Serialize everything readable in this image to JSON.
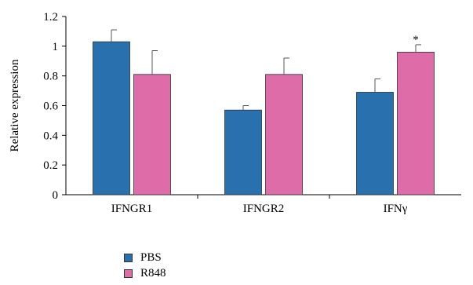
{
  "chart_data": {
    "type": "bar",
    "categories": [
      "IFNGR1",
      "IFNGR2",
      "IFNγ"
    ],
    "series": [
      {
        "name": "PBS",
        "values": [
          1.03,
          0.57,
          0.69
        ],
        "errors": [
          0.08,
          0.03,
          0.09
        ],
        "color": "#2870ae"
      },
      {
        "name": "R848",
        "values": [
          0.81,
          0.81,
          0.96
        ],
        "errors": [
          0.16,
          0.11,
          0.05
        ],
        "color": "#dd6ca8"
      }
    ],
    "annotations": [
      {
        "text": "*",
        "category": "IFNγ",
        "series": "R848"
      }
    ],
    "ylabel": "Relative expression",
    "xlabel": "",
    "ylim": [
      0,
      1.2
    ],
    "yticks": [
      "0",
      "0.2",
      "0.4",
      "0.6",
      "0.8",
      "1",
      "1.2"
    ],
    "grid": false,
    "legend_position": "bottom-left"
  },
  "legend": {
    "items": [
      {
        "label": "PBS",
        "color": "#2870ae"
      },
      {
        "label": "R848",
        "color": "#dd6ca8"
      }
    ]
  }
}
